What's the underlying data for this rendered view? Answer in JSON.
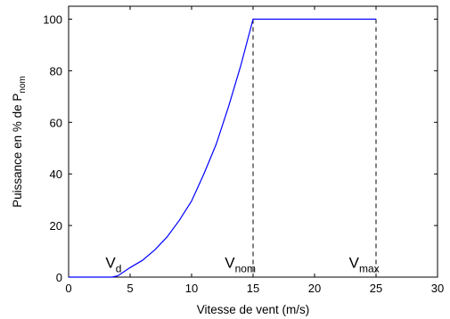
{
  "chart_data": {
    "type": "line",
    "title": "",
    "xlabel": "Vitesse de vent (m/s)",
    "ylabel": {
      "main": "Puissance en % de P",
      "sub": "nom"
    },
    "xlim": [
      0,
      30
    ],
    "ylim": [
      0,
      105
    ],
    "xticks": [
      0,
      5,
      10,
      15,
      20,
      25,
      30
    ],
    "yticks": [
      0,
      20,
      40,
      60,
      80,
      100
    ],
    "grid": false,
    "legend": "none",
    "line_color": "#0000ff",
    "series": [
      {
        "x": [
          0,
          3.5,
          4,
          5,
          6,
          7,
          8,
          9,
          10,
          11,
          12,
          13,
          14,
          15,
          20,
          25
        ],
        "values": [
          0,
          0,
          0.5,
          3.7,
          6.5,
          10.5,
          15.5,
          22,
          29.5,
          40,
          51.5,
          66,
          82,
          100,
          100,
          100
        ]
      }
    ],
    "vlines": [
      15,
      25
    ],
    "annotations": [
      {
        "text": "V",
        "sub": "d",
        "x": 3,
        "y": 3
      },
      {
        "text": "V",
        "sub": "nom",
        "x": 12.7,
        "y": 3
      },
      {
        "text": "V",
        "sub": "max",
        "x": 22.8,
        "y": 3
      }
    ]
  }
}
